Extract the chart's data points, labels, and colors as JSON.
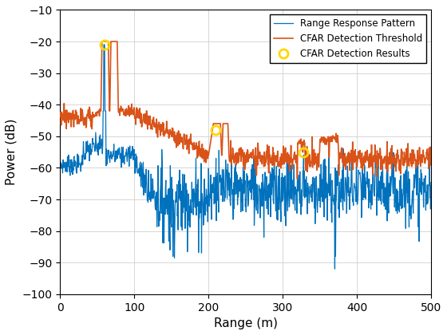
{
  "title": "",
  "xlabel": "Range (m)",
  "ylabel": "Power (dB)",
  "xlim": [
    0,
    500
  ],
  "ylim": [
    -100,
    -10
  ],
  "yticks": [
    -100,
    -90,
    -80,
    -70,
    -60,
    -50,
    -40,
    -30,
    -20,
    -10
  ],
  "xticks": [
    0,
    100,
    200,
    300,
    400,
    500
  ],
  "line_color_range": "#0072BD",
  "line_color_cfar": "#D95319",
  "marker_color_detection": "#FFD700",
  "legend_labels": [
    "Range Response Pattern",
    "CFAR Detection Threshold",
    "CFAR Detection Results"
  ],
  "detection_points_x": [
    60,
    210,
    328
  ],
  "detection_points_y": [
    -21,
    -48,
    -55
  ],
  "figsize": [
    5.6,
    4.2
  ],
  "dpi": 100
}
